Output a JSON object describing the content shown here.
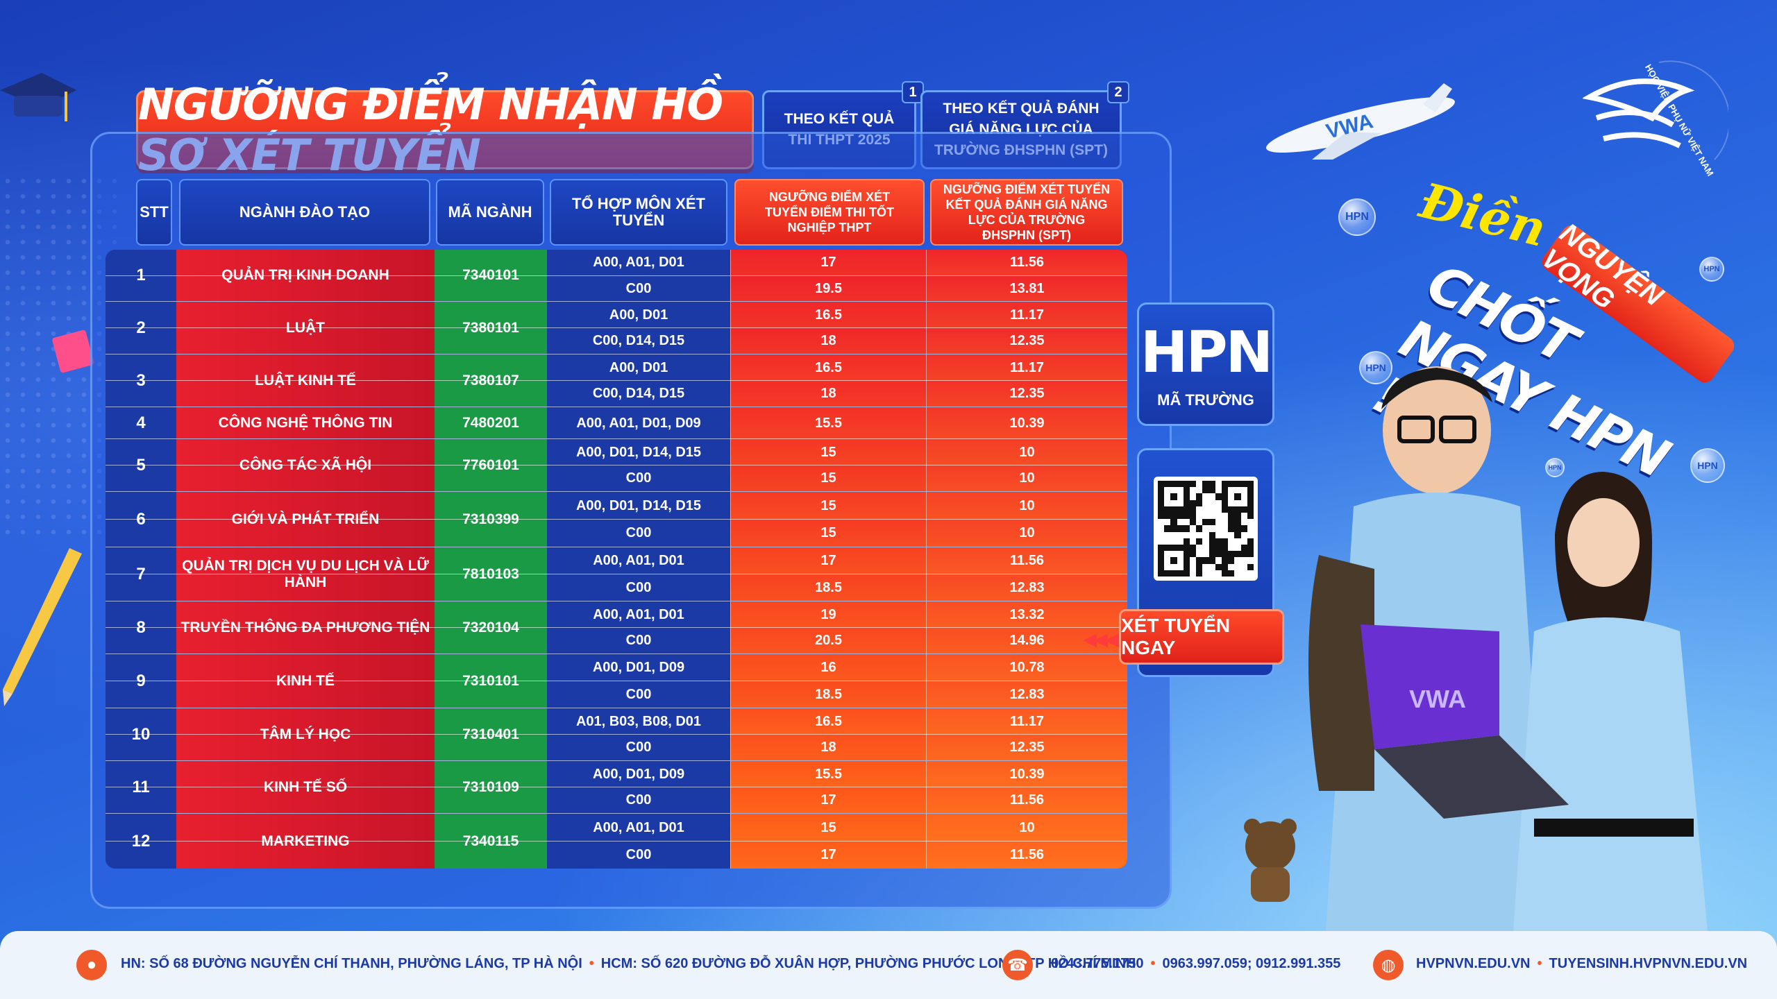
{
  "title": "NGƯỠNG ĐIỂM NHẬN HỒ SƠ XÉT TUYỂN",
  "methods": [
    {
      "num": "1",
      "label": "THEO KẾT QUẢ THI THPT 2025"
    },
    {
      "num": "2",
      "label": "THEO KẾT QUẢ ĐÁNH GIÁ NĂNG LỰC CỦA TRƯỜNG ĐHSPHN (SPT)"
    }
  ],
  "headers": {
    "stt": "STT",
    "name": "NGÀNH ĐÀO TẠO",
    "code": "MÃ NGÀNH",
    "comb": "TỔ HỢP MÔN XÉT TUYỂN",
    "thpt": "NGƯỠNG ĐIỂM XÉT TUYỂN ĐIỂM THI TỐT NGHIỆP THPT",
    "spt": "NGƯỠNG ĐIỂM XÉT TUYỂN KẾT QUẢ ĐÁNH GIÁ NĂNG LỰC CỦA TRƯỜNG ĐHSPHN (SPT)"
  },
  "rows": [
    {
      "stt": "1",
      "name": "QUẢN TRỊ KINH DOANH",
      "code": "7340101",
      "subs": [
        [
          "A00, A01, D01",
          "17",
          "11.56"
        ],
        [
          "C00",
          "19.5",
          "13.81"
        ]
      ]
    },
    {
      "stt": "2",
      "name": "LUẬT",
      "code": "7380101",
      "subs": [
        [
          "A00, D01",
          "16.5",
          "11.17"
        ],
        [
          "C00, D14, D15",
          "18",
          "12.35"
        ]
      ]
    },
    {
      "stt": "3",
      "name": "LUẬT KINH TẾ",
      "code": "7380107",
      "subs": [
        [
          "A00, D01",
          "16.5",
          "11.17"
        ],
        [
          "C00, D14, D15",
          "18",
          "12.35"
        ]
      ]
    },
    {
      "stt": "4",
      "name": "CÔNG NGHỆ THÔNG TIN",
      "code": "7480201",
      "subs": [
        [
          "A00, A01, D01, D09",
          "15.5",
          "10.39"
        ]
      ]
    },
    {
      "stt": "5",
      "name": "CÔNG TÁC XÃ HỘI",
      "code": "7760101",
      "subs": [
        [
          "A00, D01, D14, D15",
          "15",
          "10"
        ],
        [
          "C00",
          "15",
          "10"
        ]
      ]
    },
    {
      "stt": "6",
      "name": "GIỚI VÀ PHÁT TRIỂN",
      "code": "7310399",
      "subs": [
        [
          "A00, D01, D14, D15",
          "15",
          "10"
        ],
        [
          "C00",
          "15",
          "10"
        ]
      ]
    },
    {
      "stt": "7",
      "name": "QUẢN TRỊ DỊCH VỤ DU LỊCH VÀ LỮ HÀNH",
      "code": "7810103",
      "subs": [
        [
          "A00, A01, D01",
          "17",
          "11.56"
        ],
        [
          "C00",
          "18.5",
          "12.83"
        ]
      ]
    },
    {
      "stt": "8",
      "name": "TRUYỀN THÔNG ĐA PHƯƠNG TIỆN",
      "code": "7320104",
      "subs": [
        [
          "A00, A01, D01",
          "19",
          "13.32"
        ],
        [
          "C00",
          "20.5",
          "14.96"
        ]
      ]
    },
    {
      "stt": "9",
      "name": "KINH TẾ",
      "code": "7310101",
      "subs": [
        [
          "A00, D01, D09",
          "16",
          "10.78"
        ],
        [
          "C00",
          "18.5",
          "12.83"
        ]
      ]
    },
    {
      "stt": "10",
      "name": "TÂM LÝ HỌC",
      "code": "7310401",
      "subs": [
        [
          "A01, B03, B08, D01",
          "16.5",
          "11.17"
        ],
        [
          "C00",
          "18",
          "12.35"
        ]
      ]
    },
    {
      "stt": "11",
      "name": "KINH TẾ SỐ",
      "code": "7310109",
      "subs": [
        [
          "A00, D01, D09",
          "15.5",
          "10.39"
        ],
        [
          "C00",
          "17",
          "11.56"
        ]
      ]
    },
    {
      "stt": "12",
      "name": "MARKETING",
      "code": "7340115",
      "subs": [
        [
          "A00, A01, D01",
          "15",
          "10"
        ],
        [
          "C00",
          "17",
          "11.56"
        ]
      ]
    }
  ],
  "side": {
    "code_big": "HPN",
    "code_label": "MÃ TRƯỜNG",
    "cta": "XÉT TUYỂN NGAY"
  },
  "slogan": {
    "dien": "Điền",
    "nguyen_vong": "NGUYỆN VỌNG",
    "chot": "CHỐT NGAY HPN !"
  },
  "logo_text": "HỌC VIỆN PHỤ NỮ VIỆT NAM",
  "plane_text": "VWA",
  "laptop_text": "VWA",
  "bubble_text": "HPN",
  "footer": {
    "hn": "HN: SỐ 68 ĐƯỜNG NGUYỄN CHÍ THANH, PHƯỜNG LÁNG, TP HÀ NỘI",
    "hcm": "HCM: SỐ 620 ĐƯỜNG ĐỖ XUÂN HỢP, PHƯỜNG PHƯỚC LONG, TP HỒ CHÍ MINH",
    "phone1": "0243.775.1750",
    "phone2": "0963.997.059; 0912.991.355",
    "web1": "HVPNVN.EDU.VN",
    "web2": "TUYENSINH.HVPNVN.EDU.VN"
  },
  "colors": {
    "red": "#e8202f",
    "green": "#1b9a45",
    "navy": "#1b3aa6",
    "orange_top": "#f0332a",
    "orange_bottom": "#ff6a1a"
  }
}
